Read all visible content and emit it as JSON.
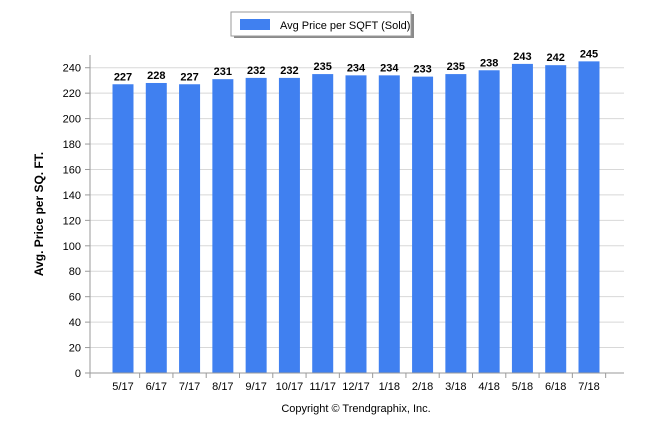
{
  "chart_data": {
    "type": "bar",
    "categories": [
      "5/17",
      "6/17",
      "7/17",
      "8/17",
      "9/17",
      "10/17",
      "11/17",
      "12/17",
      "1/18",
      "2/18",
      "3/18",
      "4/18",
      "5/18",
      "6/18",
      "7/18"
    ],
    "series": [
      {
        "name": "Avg Price per SQFT (Sold)",
        "values": [
          227,
          228,
          227,
          231,
          232,
          232,
          235,
          234,
          234,
          233,
          235,
          238,
          243,
          242,
          245
        ]
      }
    ],
    "data_labels": [
      "227",
      "228",
      "227",
      "231",
      "232",
      "232",
      "235",
      "234",
      "234",
      "233",
      "235",
      "238",
      "243",
      "242",
      "245"
    ],
    "y_ticks": [
      "0",
      "20",
      "40",
      "60",
      "80",
      "100",
      "120",
      "140",
      "160",
      "180",
      "200",
      "220",
      "240"
    ],
    "ylabel": "Avg. Price per SQ. FT.",
    "xlabel": "",
    "title": "",
    "ylim": [
      0,
      250
    ],
    "grid": true,
    "legend_position": "top-center",
    "colors": {
      "bar": "#4080f0",
      "grid": "#d8d8d8"
    }
  },
  "footer": {
    "copyright": "Copyright © Trendgraphix, Inc."
  }
}
